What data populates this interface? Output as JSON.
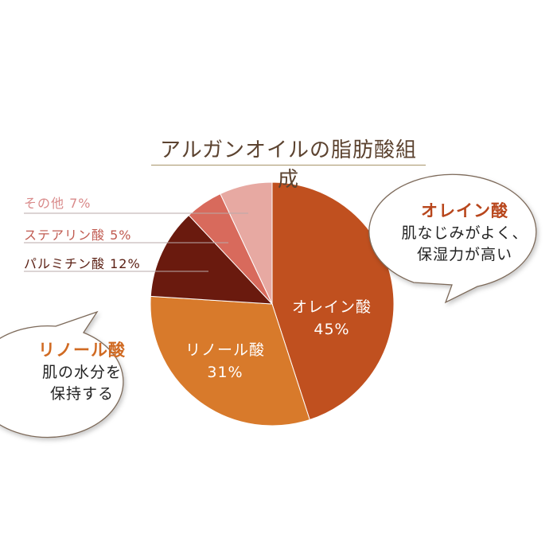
{
  "chart_data": {
    "type": "pie",
    "title": "アルガンオイルの脂肪酸組成",
    "slices": [
      {
        "label": "オレイン酸",
        "value": 45,
        "value_label": "45%",
        "color": "#c0501f"
      },
      {
        "label": "リノール酸",
        "value": 31,
        "value_label": "31%",
        "color": "#d87a2b"
      },
      {
        "label": "パルミチン酸",
        "value": 12,
        "value_label": "12%",
        "color": "#6a1a0e"
      },
      {
        "label": "ステアリン酸",
        "value": 5,
        "value_label": "5%",
        "color": "#d86a5c"
      },
      {
        "label": "その他",
        "value": 7,
        "value_label": "7%",
        "color": "#e7a9a2"
      }
    ],
    "side_labels": {
      "other": "その他 7%",
      "stearic": "ステアリン酸 5%",
      "palmitic": "パルミチン酸 12%"
    },
    "inner_labels": {
      "oleic_name": "オレイン酸",
      "oleic_value": "45%",
      "linoleic_name": "リノール酸",
      "linoleic_value": "31%"
    }
  },
  "callouts": {
    "oleic": {
      "heading": "オレイン酸",
      "line1": "肌なじみがよく、",
      "line2": "保湿力が高い",
      "accent": "#b8461c"
    },
    "linoleic": {
      "heading": "リノール酸",
      "line1": "肌の水分を",
      "line2": "保持する",
      "accent": "#d06a22"
    }
  }
}
